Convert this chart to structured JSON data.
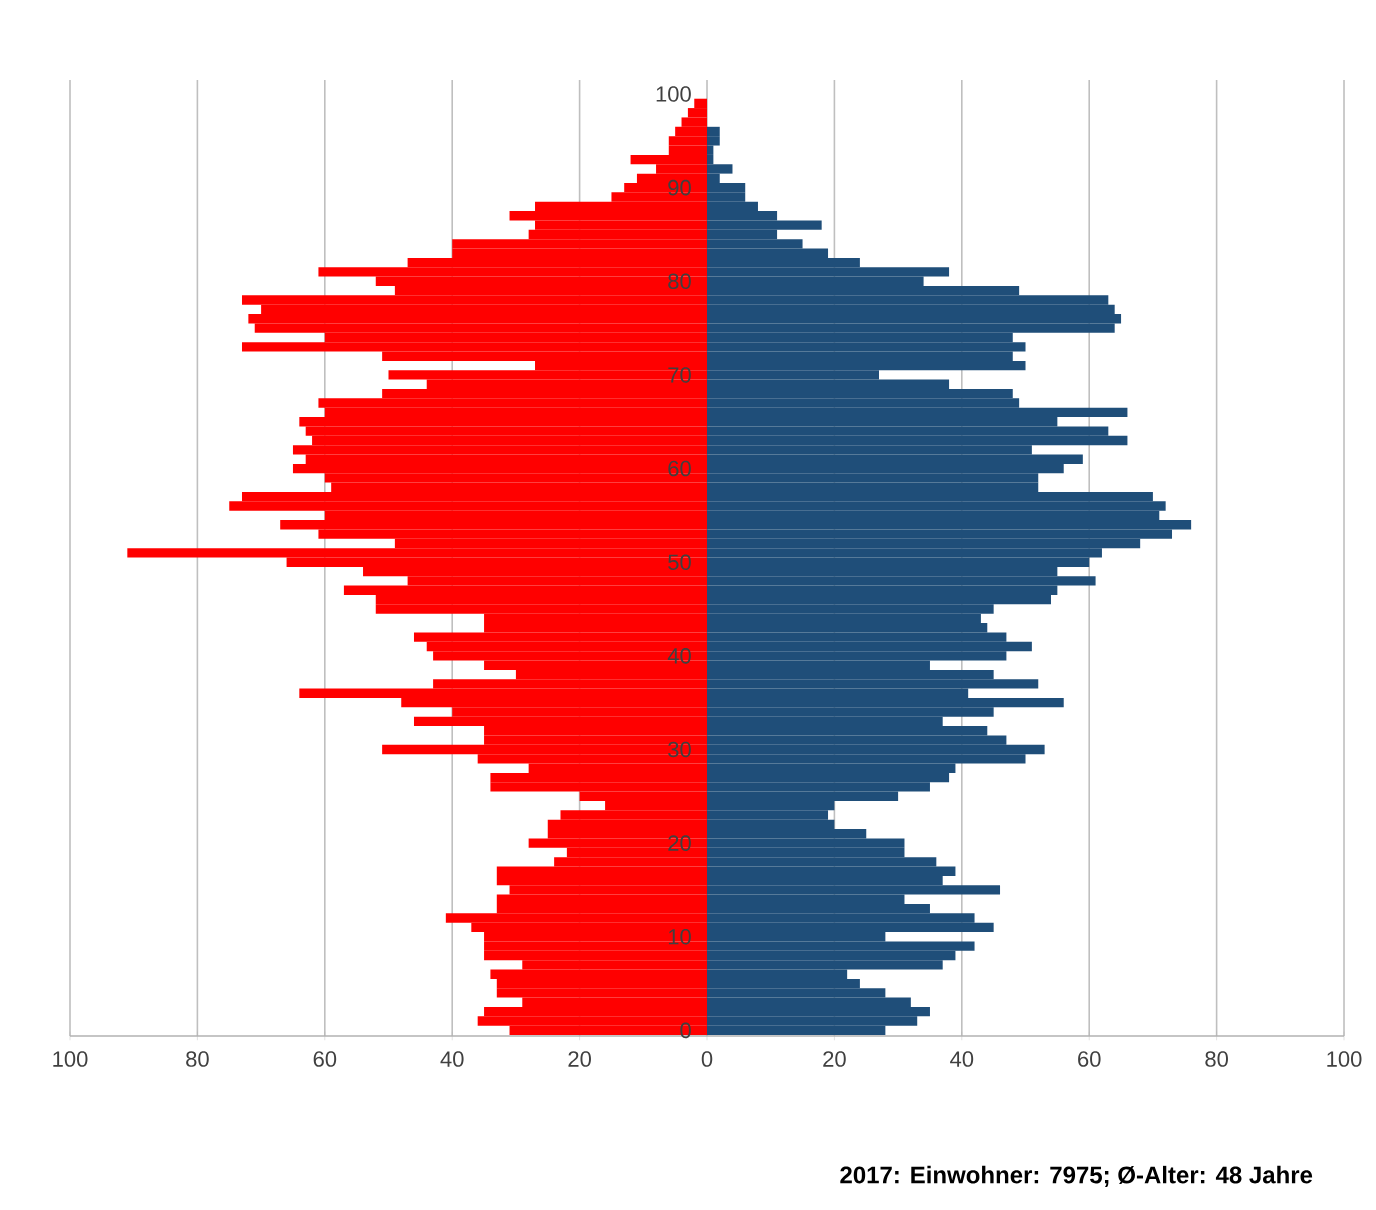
{
  "chart_data": {
    "type": "bar",
    "orientation": "horizontal",
    "stacked": true,
    "annotations": [
      "2017: Einwohner: 7975; Ø-Alter: 48 Jahre"
    ],
    "categories": [
      "100",
      null,
      null,
      null,
      null,
      null,
      null,
      null,
      null,
      null,
      "90",
      null,
      null,
      null,
      null,
      null,
      null,
      null,
      null,
      null,
      "80",
      null,
      null,
      null,
      null,
      null,
      null,
      null,
      null,
      null,
      "70",
      null,
      null,
      null,
      null,
      null,
      null,
      null,
      null,
      null,
      "60",
      null,
      null,
      null,
      null,
      null,
      null,
      null,
      null,
      null,
      "50",
      null,
      null,
      null,
      null,
      null,
      null,
      null,
      null,
      null,
      "40",
      null,
      null,
      null,
      null,
      null,
      null,
      null,
      null,
      null,
      "30",
      null,
      null,
      null,
      null,
      null,
      null,
      null,
      null,
      null,
      "20",
      null,
      null,
      null,
      null,
      null,
      null,
      null,
      null,
      null,
      "10",
      null,
      null,
      null,
      null,
      null,
      null,
      null,
      null,
      null,
      "0"
    ],
    "series": [
      {
        "color": "#ff0000",
        "values": [
          0,
          -2,
          -3,
          -4,
          -5,
          -6,
          -6,
          -12,
          -8,
          -11,
          -13,
          -15,
          -27,
          -31,
          -27,
          -28,
          -40,
          -40,
          -47,
          -61,
          -52,
          -49,
          -73,
          -70,
          -72,
          -71,
          -60,
          -73,
          -51,
          -27,
          -50,
          -44,
          -51,
          -61,
          -60,
          -64,
          -63,
          -62,
          -65,
          -63,
          -65,
          -60,
          -59,
          -73,
          -75,
          -60,
          -67,
          -61,
          -49,
          -91,
          -66,
          -54,
          -47,
          -57,
          -52,
          -52,
          -35,
          -35,
          -46,
          -44,
          -43,
          -35,
          -30,
          -43,
          -64,
          -48,
          -40,
          -46,
          -35,
          -35,
          -51,
          -36,
          -28,
          -34,
          -34,
          -20,
          -16,
          -23,
          -25,
          -25,
          -28,
          -22,
          -24,
          -33,
          -33,
          -31,
          -33,
          -33,
          -41,
          -37,
          -35,
          -35,
          -35,
          -29,
          -34,
          -33,
          -33,
          -29,
          -35,
          -36,
          -31
        ]
      },
      {
        "color": "#1f4e79",
        "values": [
          0,
          0,
          0,
          0,
          2,
          2,
          1,
          1,
          4,
          2,
          6,
          6,
          8,
          11,
          18,
          11,
          15,
          19,
          24,
          38,
          34,
          49,
          63,
          64,
          65,
          64,
          48,
          50,
          48,
          50,
          27,
          38,
          48,
          49,
          66,
          55,
          63,
          66,
          51,
          59,
          56,
          52,
          52,
          70,
          72,
          71,
          76,
          73,
          68,
          62,
          60,
          55,
          61,
          55,
          54,
          45,
          43,
          44,
          47,
          51,
          47,
          35,
          45,
          52,
          41,
          56,
          45,
          37,
          44,
          47,
          53,
          50,
          39,
          38,
          35,
          30,
          20,
          19,
          20,
          25,
          31,
          31,
          36,
          39,
          37,
          46,
          31,
          35,
          42,
          45,
          28,
          42,
          39,
          37,
          22,
          24,
          28,
          32,
          35,
          33,
          28
        ]
      }
    ],
    "xlim": [
      -100,
      100
    ],
    "xticks": [
      {
        "value": -100,
        "label": "100"
      },
      {
        "value": -80,
        "label": "80"
      },
      {
        "value": -60,
        "label": "60"
      },
      {
        "value": -40,
        "label": "40"
      },
      {
        "value": -20,
        "label": "20"
      },
      0,
      20,
      40,
      60,
      80,
      100
    ],
    "grid": "x"
  }
}
